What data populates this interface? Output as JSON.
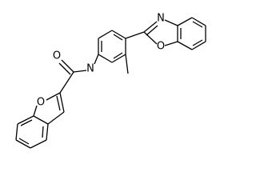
{
  "atoms": [
    {
      "label": "O"
    },
    {
      "label": "N"
    },
    {
      "label": "N"
    },
    {
      "label": "O"
    },
    {
      "label": "O"
    }
  ]
}
